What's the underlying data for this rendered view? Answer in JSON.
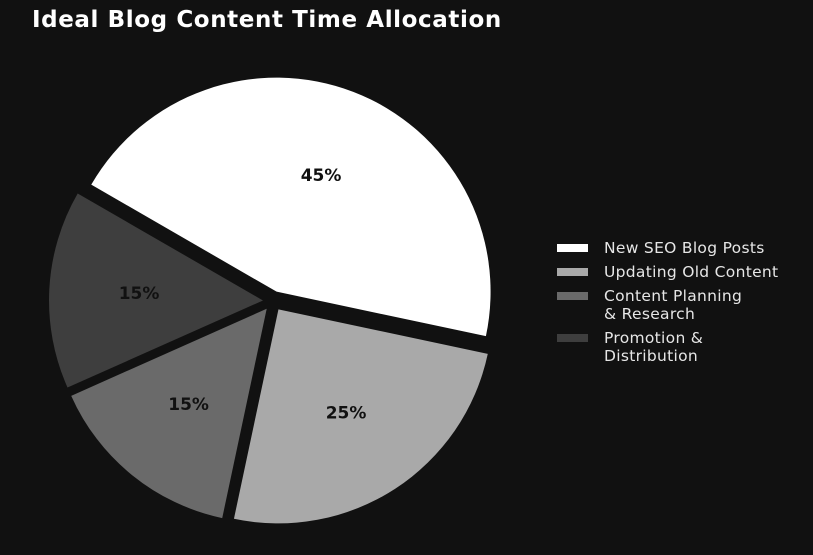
{
  "title": "Ideal Blog Content Time Allocation",
  "colors": {
    "background": "#111111",
    "title": "#ffffff",
    "legend_text": "#e6e6e6",
    "slice_label": "#111111"
  },
  "chart_data": {
    "type": "pie",
    "title": "Ideal Blog Content Time Allocation",
    "start_angle_deg": 150,
    "direction": "clockwise",
    "exploded": true,
    "legend_position": "right",
    "slices": [
      {
        "label": "New SEO Blog Posts",
        "value": 45,
        "value_label": "45%",
        "color": "#ffffff"
      },
      {
        "label": "Updating Old Content",
        "value": 25,
        "value_label": "25%",
        "color": "#a9a9a9"
      },
      {
        "label": "Content Planning\n& Research",
        "value": 15,
        "value_label": "15%",
        "color": "#6a6a6a"
      },
      {
        "label": "Promotion &\nDistribution",
        "value": 15,
        "value_label": "15%",
        "color": "#3e3e3e"
      }
    ]
  }
}
